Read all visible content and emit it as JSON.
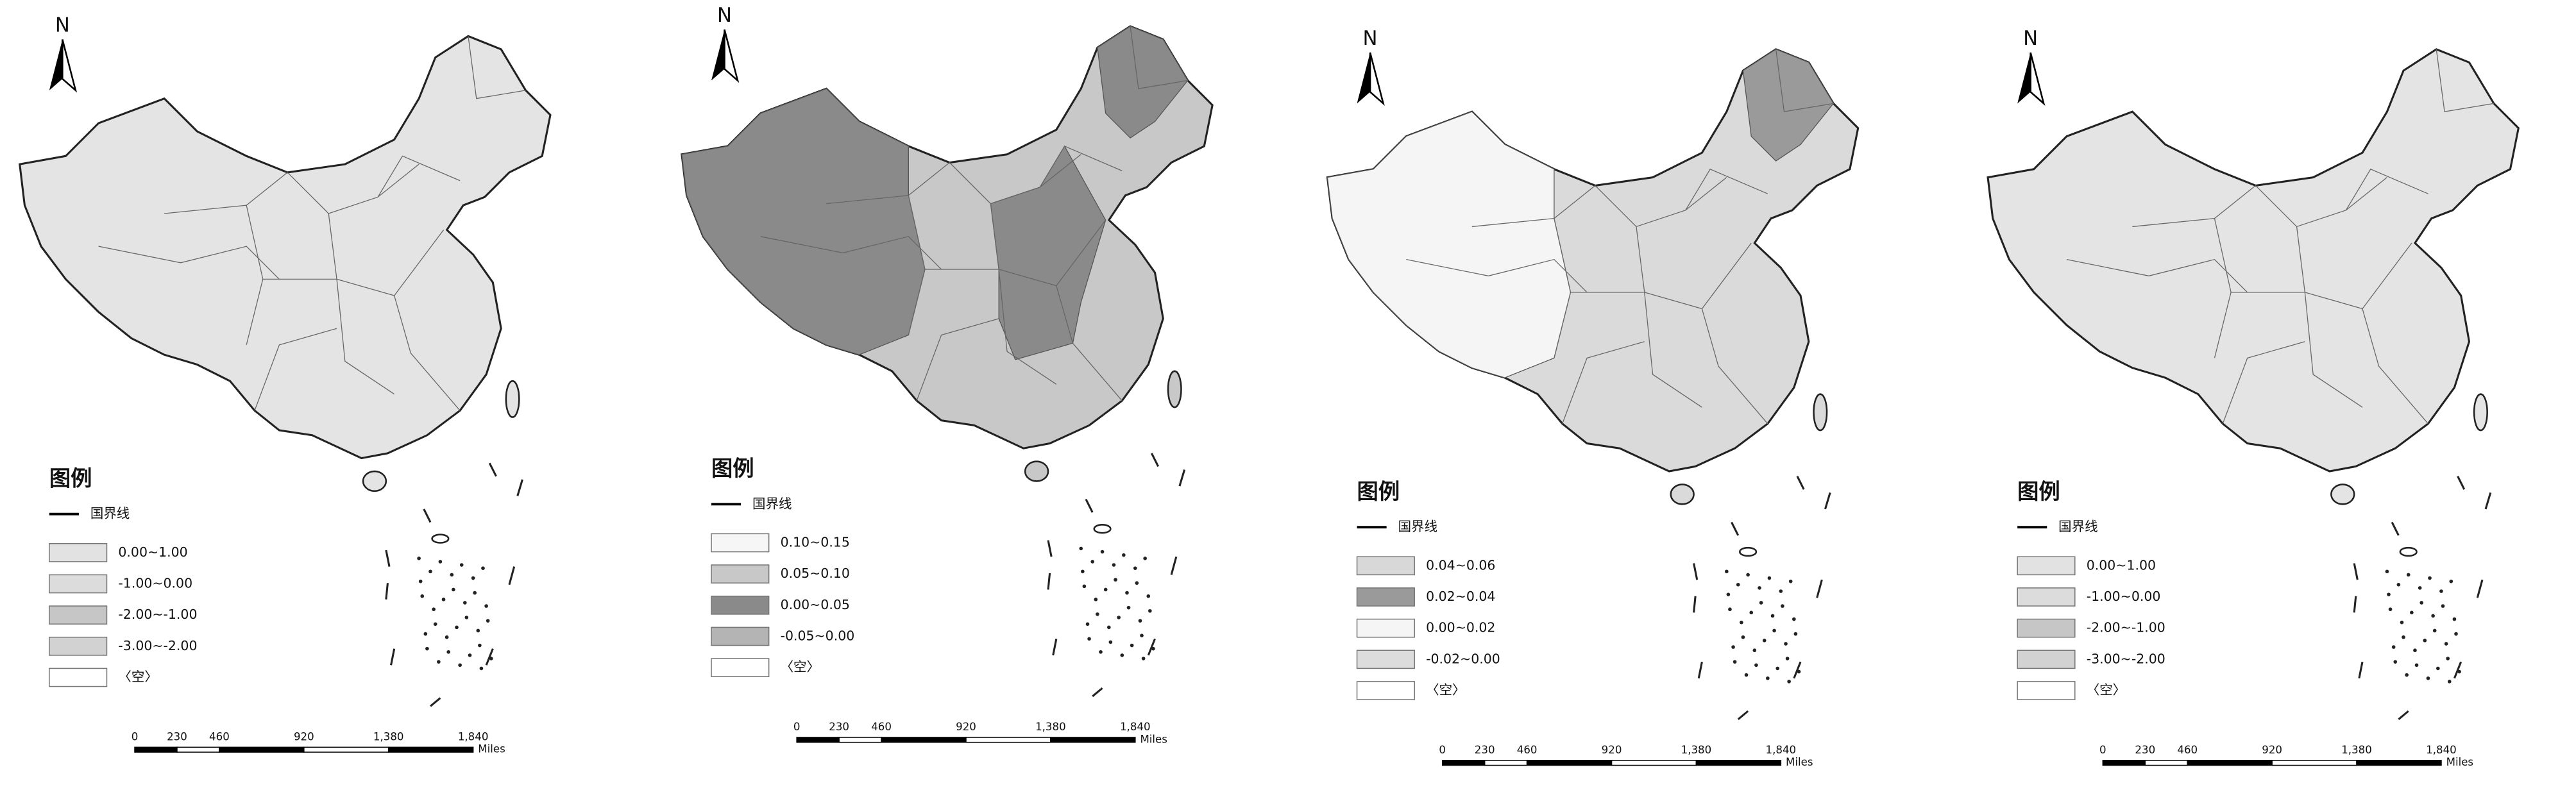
{
  "maps": [
    {
      "north": "N",
      "legend": {
        "title": "图例",
        "boundary": "国界线",
        "items": [
          {
            "label": "0.00~1.00",
            "color": "#e2e2e2"
          },
          {
            "label": "-1.00~0.00",
            "color": "#dcdcdc"
          },
          {
            "label": "-2.00~-1.00",
            "color": "#c6c6c6"
          },
          {
            "label": "-3.00~-2.00",
            "color": "#d2d2d2"
          },
          {
            "label": "〈空〉",
            "color": "#ffffff"
          }
        ]
      },
      "scale_bar": {
        "labels": [
          "0",
          "230",
          "460",
          "920",
          "1,380",
          "1,840"
        ],
        "unit": "Miles"
      }
    },
    {
      "north": "N",
      "legend": {
        "title": "图例",
        "boundary": "国界线",
        "items": [
          {
            "label": "0.10~0.15",
            "color": "#f6f6f6"
          },
          {
            "label": "0.05~0.10",
            "color": "#c8c8c8"
          },
          {
            "label": "0.00~0.05",
            "color": "#8a8a8a"
          },
          {
            "label": "-0.05~0.00",
            "color": "#b4b4b4"
          },
          {
            "label": "〈空〉",
            "color": "#ffffff"
          }
        ]
      },
      "scale_bar": {
        "labels": [
          "0",
          "230",
          "460",
          "920",
          "1,380",
          "1,840"
        ],
        "unit": "Miles"
      }
    },
    {
      "north": "N",
      "legend": {
        "title": "图例",
        "boundary": "国界线",
        "items": [
          {
            "label": "0.04~0.06",
            "color": "#d8d8d8"
          },
          {
            "label": "0.02~0.04",
            "color": "#9a9a9a"
          },
          {
            "label": "0.00~0.02",
            "color": "#f5f5f5"
          },
          {
            "label": "-0.02~0.00",
            "color": "#dcdcdc"
          },
          {
            "label": "〈空〉",
            "color": "#ffffff"
          }
        ]
      },
      "scale_bar": {
        "labels": [
          "0",
          "230",
          "460",
          "920",
          "1,380",
          "1,840"
        ],
        "unit": "Miles"
      }
    },
    {
      "north": "N",
      "legend": {
        "title": "图例",
        "boundary": "国界线",
        "items": [
          {
            "label": "0.00~1.00",
            "color": "#e2e2e2"
          },
          {
            "label": "-1.00~0.00",
            "color": "#dcdcdc"
          },
          {
            "label": "-2.00~-1.00",
            "color": "#c6c6c6"
          },
          {
            "label": "-3.00~-2.00",
            "color": "#d2d2d2"
          },
          {
            "label": "〈空〉",
            "color": "#ffffff"
          }
        ]
      },
      "scale_bar": {
        "labels": [
          "0",
          "230",
          "460",
          "920",
          "1,380",
          "1,840"
        ],
        "unit": "Miles"
      }
    }
  ]
}
